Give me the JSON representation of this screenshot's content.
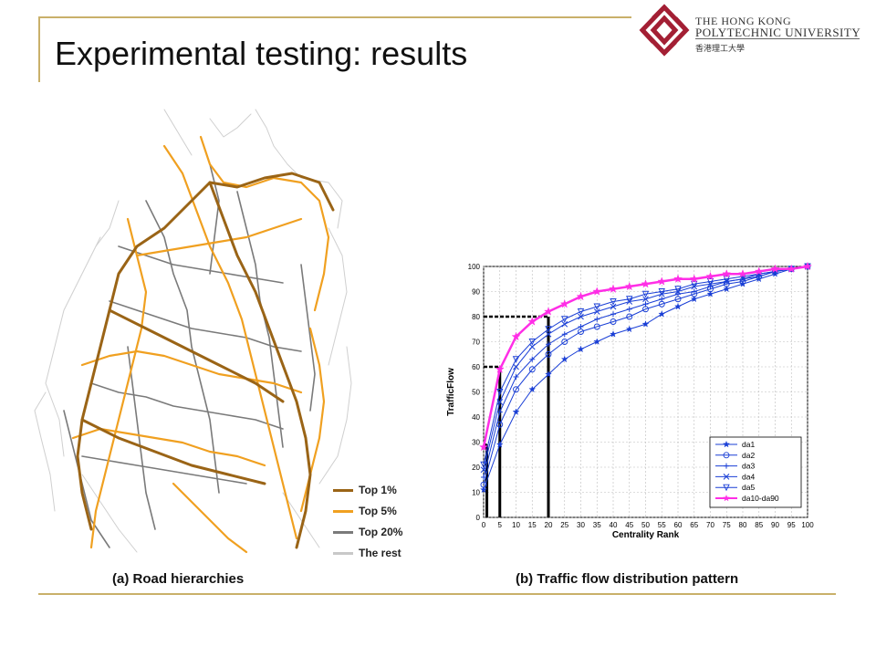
{
  "slide": {
    "title": "Experimental testing: results",
    "caption_a": "(a) Road hierarchies",
    "caption_b": "(b) Traffic flow distribution pattern"
  },
  "logo": {
    "line1": "THE HONG KONG",
    "line2": "POLYTECHNIC UNIVERSITY",
    "line3": "香港理工大學",
    "color": "#a31f34"
  },
  "map_legend": [
    {
      "label": "Top 1%",
      "color": "#9a6416"
    },
    {
      "label": "Top 5%",
      "color": "#f0a020"
    },
    {
      "label": "Top 20%",
      "color": "#7a7a7a"
    },
    {
      "label": "The rest",
      "color": "#c8c8c8"
    }
  ],
  "chart_data": {
    "type": "line",
    "xlabel": "Centrality Rank",
    "ylabel": "TrafficFlow",
    "xlim": [
      0,
      100
    ],
    "ylim": [
      0,
      100
    ],
    "xticks": [
      0,
      5,
      10,
      15,
      20,
      25,
      30,
      35,
      40,
      45,
      50,
      55,
      60,
      65,
      70,
      75,
      80,
      85,
      90,
      95,
      100
    ],
    "yticks": [
      0,
      10,
      20,
      30,
      40,
      50,
      60,
      70,
      80,
      90,
      100
    ],
    "grid": true,
    "legend_position": "bottom-right",
    "x": [
      0,
      5,
      10,
      15,
      20,
      25,
      30,
      35,
      40,
      45,
      50,
      55,
      60,
      65,
      70,
      75,
      80,
      85,
      90,
      95,
      100
    ],
    "series": [
      {
        "name": "da1",
        "marker": "star",
        "color": "#1a3fd6",
        "values": [
          11,
          29,
          42,
          51,
          57,
          63,
          67,
          70,
          73,
          75,
          77,
          81,
          84,
          87,
          89,
          91,
          93,
          95,
          97,
          99,
          100
        ]
      },
      {
        "name": "da2",
        "marker": "circle",
        "color": "#1a3fd6",
        "values": [
          13,
          37,
          51,
          59,
          65,
          70,
          74,
          76,
          78,
          80,
          83,
          85,
          87,
          89,
          91,
          93,
          94,
          96,
          98,
          99,
          100
        ]
      },
      {
        "name": "da3",
        "marker": "plus",
        "color": "#1a3fd6",
        "values": [
          16,
          42,
          56,
          63,
          69,
          73,
          76,
          79,
          81,
          83,
          85,
          87,
          89,
          90,
          92,
          94,
          95,
          96,
          98,
          99,
          100
        ]
      },
      {
        "name": "da4",
        "marker": "x",
        "color": "#1a3fd6",
        "values": [
          19,
          46,
          60,
          68,
          73,
          77,
          80,
          82,
          84,
          86,
          87,
          89,
          90,
          92,
          93,
          94,
          95,
          97,
          98,
          99,
          100
        ]
      },
      {
        "name": "da5",
        "marker": "triangle",
        "color": "#1a3fd6",
        "values": [
          21,
          50,
          63,
          70,
          75,
          79,
          82,
          84,
          86,
          87,
          89,
          90,
          91,
          93,
          94,
          95,
          96,
          97,
          98,
          99,
          100
        ]
      },
      {
        "name": "da10-da90",
        "marker": "star",
        "color": "#ff2ee6",
        "values": [
          28,
          59,
          72,
          78,
          82,
          85,
          88,
          90,
          91,
          92,
          93,
          94,
          95,
          95,
          96,
          97,
          97,
          98,
          99,
          99,
          100
        ]
      }
    ],
    "annotations": [
      {
        "x_line": 1,
        "y": 29
      },
      {
        "x_line": 5,
        "y": 60
      },
      {
        "x_line": 20,
        "y": 80
      }
    ]
  }
}
